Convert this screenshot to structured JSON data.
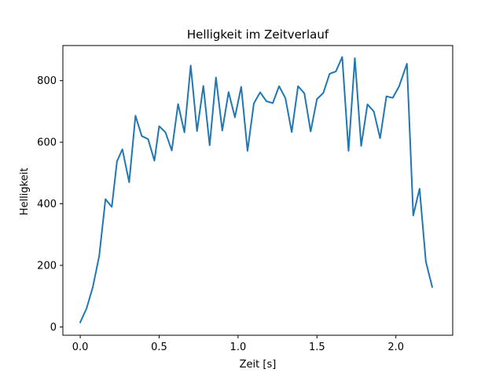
{
  "chart_data": {
    "type": "line",
    "title": "Helligkeit im Zeitverlauf",
    "xlabel": "Zeit [s]",
    "ylabel": "Helligkeit",
    "xlim": [
      -0.11,
      2.36
    ],
    "ylim": [
      -27,
      914
    ],
    "x_ticks": [
      0.0,
      0.5,
      1.0,
      1.5,
      2.0
    ],
    "x_tick_labels": [
      "0.0",
      "0.5",
      "1.0",
      "1.5",
      "2.0"
    ],
    "y_ticks": [
      0,
      200,
      400,
      600,
      800
    ],
    "y_tick_labels": [
      "0",
      "200",
      "400",
      "600",
      "800"
    ],
    "grid": false,
    "series": [
      {
        "color": "#1f77b4",
        "x": [
          0.0,
          0.04,
          0.08,
          0.12,
          0.16,
          0.2,
          0.233,
          0.267,
          0.31,
          0.35,
          0.39,
          0.43,
          0.47,
          0.5,
          0.54,
          0.58,
          0.62,
          0.66,
          0.7,
          0.74,
          0.78,
          0.82,
          0.86,
          0.9,
          0.94,
          0.98,
          1.02,
          1.06,
          1.1,
          1.14,
          1.18,
          1.22,
          1.26,
          1.3,
          1.34,
          1.38,
          1.42,
          1.46,
          1.5,
          1.54,
          1.58,
          1.62,
          1.66,
          1.7,
          1.74,
          1.78,
          1.82,
          1.86,
          1.9,
          1.94,
          1.98,
          2.02,
          2.07,
          2.11,
          2.15,
          2.19,
          2.23
        ],
        "y": [
          15,
          60,
          130,
          230,
          415,
          390,
          538,
          577,
          470,
          686,
          620,
          610,
          540,
          652,
          632,
          573,
          724,
          632,
          849,
          636,
          783,
          590,
          810,
          638,
          763,
          681,
          780,
          572,
          726,
          762,
          733,
          727,
          782,
          743,
          633,
          782,
          759,
          635,
          740,
          760,
          822,
          830,
          877,
          572,
          873,
          588,
          723,
          700,
          613,
          749,
          744,
          781,
          855,
          362,
          449,
          212,
          130
        ]
      }
    ]
  }
}
